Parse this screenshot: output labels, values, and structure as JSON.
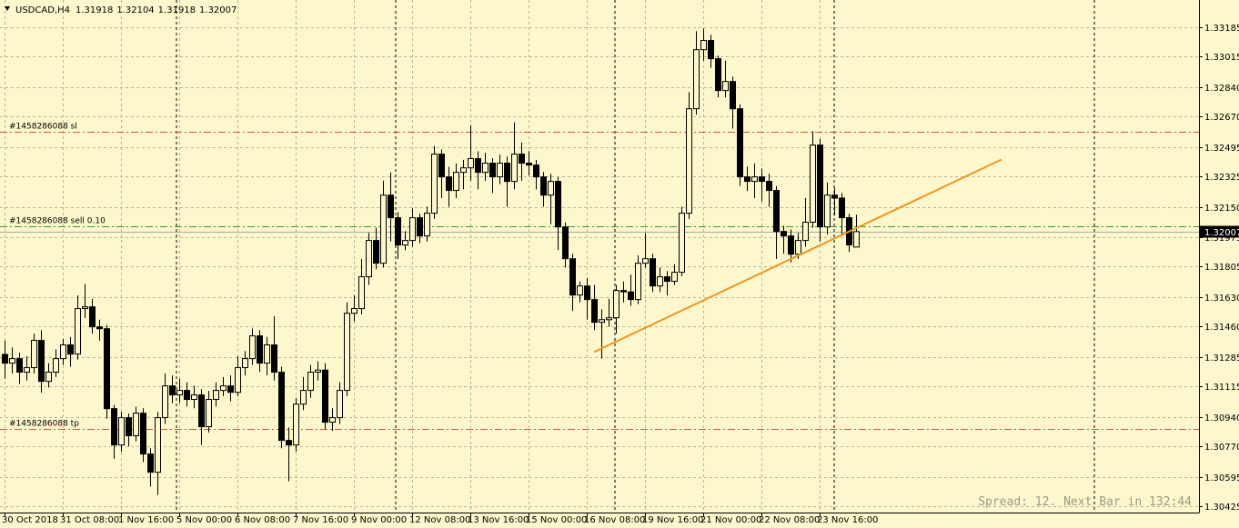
{
  "chart_data": {
    "type": "candlestick",
    "title": "USDCAD,H4",
    "status": "Spread: 12. Next Bar in 132:44",
    "background": "#fcf7cc",
    "grid": true,
    "grid_color": "#b9b59a",
    "up_fill": "#fcf7cc",
    "down_fill": "#000000",
    "outline": "#000000",
    "categories": [
      "30 Oct 2018",
      null,
      null,
      null,
      null,
      null,
      null,
      null,
      "31 Oct 08:00",
      null,
      null,
      null,
      null,
      null,
      null,
      null,
      "1 Nov 16:00",
      null,
      null,
      null,
      null,
      null,
      null,
      null,
      "5 Nov 00:00",
      null,
      null,
      null,
      null,
      null,
      null,
      null,
      "6 Nov 08:00",
      null,
      null,
      null,
      null,
      null,
      null,
      null,
      "7 Nov 16:00",
      null,
      null,
      null,
      null,
      null,
      null,
      null,
      "9 Nov 00:00",
      null,
      null,
      null,
      null,
      null,
      null,
      null,
      "12 Nov 08:00",
      null,
      null,
      null,
      null,
      null,
      null,
      null,
      "13 Nov 16:00",
      null,
      null,
      null,
      null,
      null,
      null,
      null,
      "15 Nov 00:00",
      null,
      null,
      null,
      null,
      null,
      null,
      null,
      "16 Nov 08:00",
      null,
      null,
      null,
      null,
      null,
      null,
      null,
      "19 Nov 16:00",
      null,
      null,
      null,
      null,
      null,
      null,
      null,
      "21 Nov 00:00",
      null,
      null,
      null,
      null,
      null,
      null,
      null,
      "22 Nov 08:00",
      null,
      null,
      null,
      null,
      null,
      null,
      null,
      "23 Nov 16:00",
      null,
      null,
      null,
      null,
      null
    ],
    "open": [
      1.313,
      1.3125,
      1.31276,
      1.31198,
      1.31224,
      1.31381,
      1.31145,
      1.31198,
      1.31276,
      1.31355,
      1.31302,
      1.31564,
      1.31574,
      1.31459,
      1.31448,
      1.30988,
      1.30779,
      1.30936,
      1.30832,
      1.30962,
      1.30727,
      1.30622,
      1.30936,
      1.31119,
      1.31067,
      1.31093,
      1.31041,
      1.31067,
      1.30884,
      1.31041,
      1.31093,
      1.31119,
      1.31082,
      1.31224,
      1.31276,
      1.31407,
      1.3125,
      1.31355,
      1.31198,
      1.30805,
      1.30779,
      1.31014,
      1.31093,
      1.31198,
      1.3121,
      1.3091,
      1.30936,
      1.31093,
      1.31537,
      1.31564,
      1.31747,
      1.31956,
      1.31825,
      1.32217,
      1.32087,
      1.3193,
      1.31956,
      1.32087,
      1.31982,
      1.32113,
      1.32453,
      1.32322,
      1.32244,
      1.32348,
      1.32374,
      1.32427,
      1.32348,
      1.32401,
      1.32322,
      1.32401,
      1.32296,
      1.32453,
      1.32401,
      1.3239,
      1.32322,
      1.32217,
      1.32296,
      1.32034,
      1.31851,
      1.31642,
      1.31694,
      1.31616,
      1.31485,
      1.315,
      1.31511,
      1.31668,
      1.3166,
      1.31616,
      1.31825,
      1.31851,
      1.31694,
      1.31747,
      1.31721,
      1.31773,
      1.32113,
      1.32714,
      1.33054,
      1.33107,
      1.33002,
      1.32819,
      1.32871,
      1.32714,
      1.32322,
      1.32296,
      1.32322,
      1.32296,
      1.32244,
      1.32008,
      1.31982,
      1.31877,
      1.31956,
      1.32061,
      1.32505,
      1.32034,
      1.32217,
      1.322,
      1.32087,
      1.31918
    ],
    "high": [
      1.3138,
      1.3134,
      1.3131,
      1.3129,
      1.3142,
      1.3144,
      1.3125,
      1.3133,
      1.3139,
      1.314,
      1.3164,
      1.31705,
      1.3162,
      1.315,
      1.3147,
      1.3101,
      1.3097,
      1.3096,
      1.31,
      1.3099,
      1.3076,
      1.3097,
      1.3119,
      1.3118,
      1.3116,
      1.3114,
      1.3112,
      1.311,
      1.3109,
      1.3114,
      1.3117,
      1.3118,
      1.3129,
      1.3132,
      1.3145,
      1.3144,
      1.314,
      1.3152,
      1.3123,
      1.3088,
      1.3105,
      1.3117,
      1.3124,
      1.3126,
      1.3125,
      1.3099,
      1.3114,
      1.316,
      1.3164,
      1.3185,
      1.32,
      1.3203,
      1.323,
      1.32348,
      1.3212,
      1.3201,
      1.3214,
      1.3211,
      1.3215,
      1.325,
      1.3248,
      1.3238,
      1.324,
      1.3242,
      1.3262,
      1.3247,
      1.3246,
      1.3243,
      1.3245,
      1.3244,
      1.32636,
      1.3252,
      1.3247,
      1.3242,
      1.3235,
      1.3234,
      1.3232,
      1.3206,
      1.3188,
      1.3172,
      1.3174,
      1.317,
      1.3156,
      1.3162,
      1.317,
      1.3172,
      1.3176,
      1.3187,
      1.32,
      1.3188,
      1.318,
      1.3178,
      1.3182,
      1.3215,
      1.3281,
      1.3316,
      1.33175,
      1.3314,
      1.3302,
      1.3299,
      1.329,
      1.3274,
      1.3238,
      1.324,
      1.3237,
      1.3234,
      1.3227,
      1.3204,
      1.3202,
      1.32,
      1.322,
      1.32584,
      1.3254,
      1.3229,
      1.3226,
      1.3223,
      1.3211,
      1.32104
    ],
    "low": [
      1.3116,
      1.3119,
      1.3113,
      1.3115,
      1.3119,
      1.3108,
      1.3111,
      1.3117,
      1.3124,
      1.3123,
      1.3127,
      1.3151,
      1.3142,
      1.3138,
      1.3093,
      1.307,
      1.3074,
      1.3077,
      1.308,
      1.3068,
      1.3054,
      1.30492,
      1.309,
      1.3102,
      1.3102,
      1.31,
      1.3099,
      1.3078,
      1.3085,
      1.31,
      1.3106,
      1.3103,
      1.3106,
      1.3118,
      1.3124,
      1.312,
      1.3118,
      1.3115,
      1.3076,
      1.3057,
      1.3074,
      1.3098,
      1.3105,
      1.3115,
      1.3087,
      1.3086,
      1.309,
      1.3106,
      1.3149,
      1.3153,
      1.317,
      1.3179,
      1.318,
      1.3195,
      1.3185,
      1.319,
      1.3192,
      1.3194,
      1.3195,
      1.3208,
      1.322,
      1.3215,
      1.322,
      1.3225,
      1.323,
      1.3225,
      1.323,
      1.3223,
      1.3228,
      1.3215,
      1.3225,
      1.323,
      1.3233,
      1.3225,
      1.3215,
      1.3205,
      1.319,
      1.318,
      1.3155,
      1.316,
      1.315,
      1.3144,
      1.31276,
      1.3146,
      1.3142,
      1.316,
      1.3158,
      1.3159,
      1.318,
      1.3166,
      1.3166,
      1.3164,
      1.317,
      1.3175,
      1.3208,
      1.3268,
      1.3299,
      1.3295,
      1.3278,
      1.3278,
      1.326,
      1.3227,
      1.3224,
      1.322,
      1.3218,
      1.3215,
      1.3185,
      1.3188,
      1.3183,
      1.3185,
      1.3192,
      1.3203,
      1.3195,
      1.3199,
      1.321,
      1.3199,
      1.3189,
      1.31918
    ],
    "close": [
      1.3125,
      1.31276,
      1.31198,
      1.31224,
      1.31381,
      1.31145,
      1.31198,
      1.31276,
      1.31355,
      1.31302,
      1.31564,
      1.31574,
      1.31459,
      1.31448,
      1.30988,
      1.30779,
      1.30936,
      1.30832,
      1.30962,
      1.30727,
      1.30622,
      1.30936,
      1.31119,
      1.31067,
      1.31093,
      1.31041,
      1.31067,
      1.30884,
      1.31041,
      1.31093,
      1.31119,
      1.31082,
      1.31224,
      1.31276,
      1.31407,
      1.3125,
      1.31355,
      1.31198,
      1.30805,
      1.30779,
      1.31014,
      1.31093,
      1.31198,
      1.3121,
      1.3091,
      1.30936,
      1.31093,
      1.31537,
      1.31564,
      1.31747,
      1.31956,
      1.31825,
      1.32217,
      1.32087,
      1.3193,
      1.31956,
      1.32087,
      1.31982,
      1.32113,
      1.32453,
      1.32322,
      1.32244,
      1.32348,
      1.32374,
      1.32427,
      1.32348,
      1.32401,
      1.32322,
      1.32401,
      1.32296,
      1.32453,
      1.32401,
      1.3239,
      1.32322,
      1.32217,
      1.32296,
      1.32034,
      1.31851,
      1.31642,
      1.31694,
      1.31616,
      1.31485,
      1.315,
      1.31511,
      1.31668,
      1.3166,
      1.31616,
      1.31825,
      1.31851,
      1.31694,
      1.31747,
      1.31721,
      1.31773,
      1.32113,
      1.32714,
      1.33054,
      1.33107,
      1.33002,
      1.32819,
      1.32871,
      1.32714,
      1.32322,
      1.32296,
      1.32322,
      1.32296,
      1.32244,
      1.32008,
      1.31982,
      1.31877,
      1.31956,
      1.32061,
      1.32505,
      1.32034,
      1.32217,
      1.322,
      1.32087,
      1.3193,
      1.32007
    ],
    "ylim": [
      1.3039,
      1.3334
    ],
    "yticks": [
      1.33185,
      1.33015,
      {
        "value": 1.3284,
        "label": "1.32840"
      },
      {
        "value": 1.3267,
        "label": "1.32670"
      },
      1.32495,
      1.32325,
      {
        "value": 1.3215,
        "label": "1.32150"
      },
      1.31975,
      1.31805,
      {
        "value": 1.3163,
        "label": "1.31630"
      },
      {
        "value": 1.3146,
        "label": "1.31460"
      },
      1.31285,
      1.31115,
      {
        "value": 1.3094,
        "label": "1.30940"
      },
      {
        "value": 1.3077,
        "label": "1.30770"
      },
      1.30595,
      1.30425
    ],
    "levels": [
      {
        "label": "#1458286088 sl",
        "value": 1.32579,
        "color": "#e0533c"
      },
      {
        "label": "#1458286088 sell 0.10",
        "value": 1.3204,
        "color": "#2f9e2f"
      },
      {
        "label": "#1458286088 tp",
        "value": 1.30869,
        "color": "#e0533c"
      }
    ],
    "trendline": {
      "color": "#f0961e",
      "x": [
        81,
        137
      ],
      "y": [
        1.31314,
        1.32422
      ]
    }
  }
}
